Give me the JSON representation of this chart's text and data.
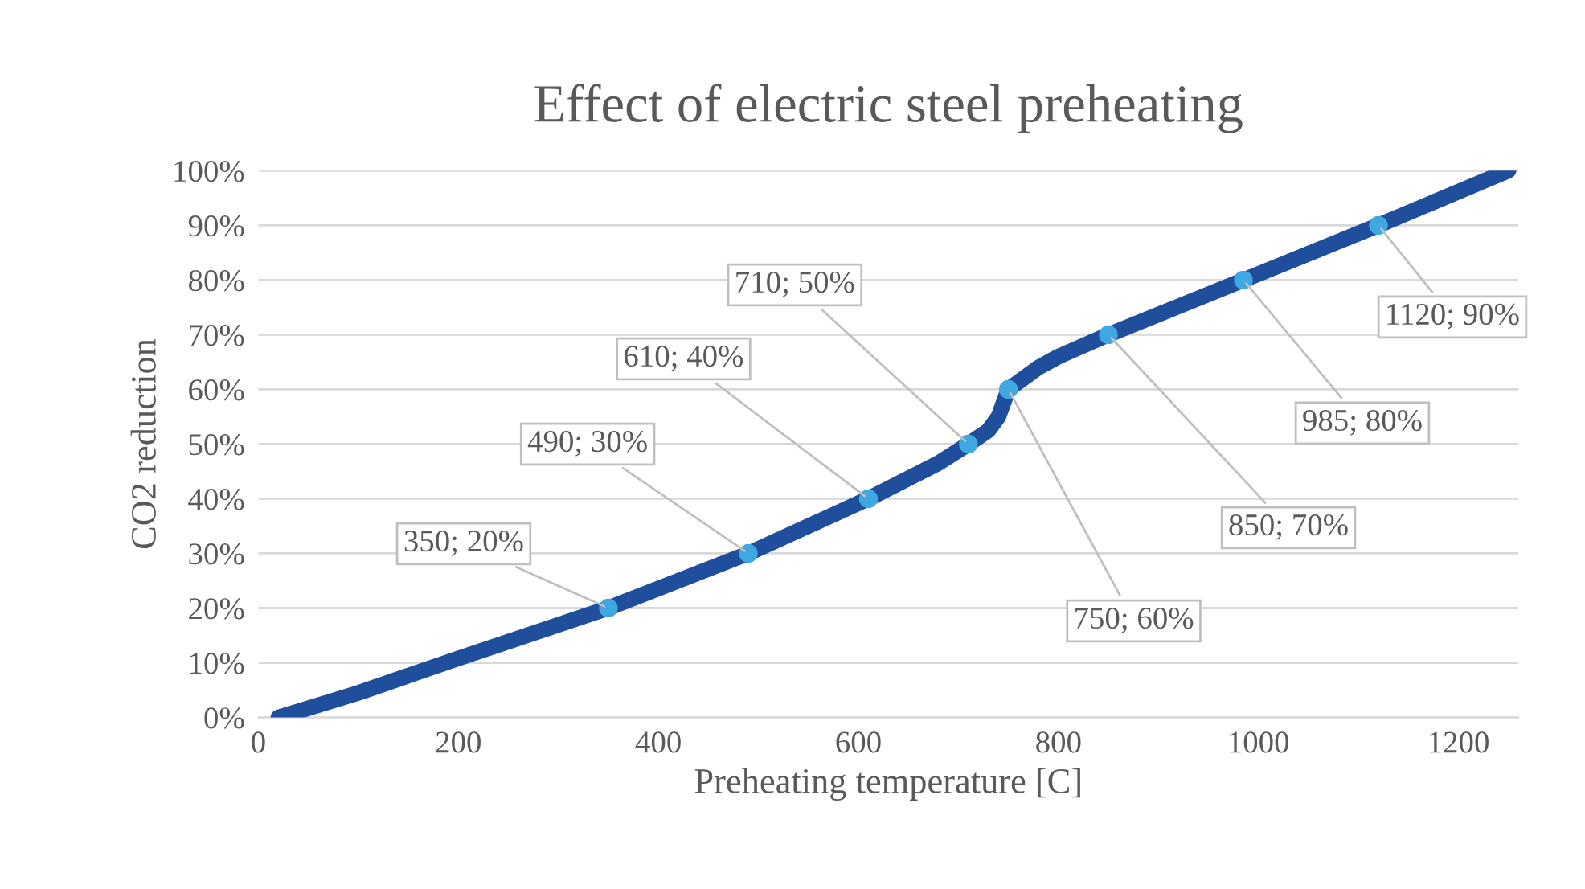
{
  "chart_data": {
    "type": "line",
    "title": "Effect of electric steel preheating",
    "xlabel": "Preheating temperature [C]",
    "ylabel": "CO2 reduction",
    "xlim": [
      0,
      1260
    ],
    "xticks": [
      0,
      200,
      400,
      600,
      800,
      1000,
      1200
    ],
    "ylim": [
      0,
      100
    ],
    "yticks": [
      {
        "value": 0,
        "label": "0%"
      },
      {
        "value": 10,
        "label": "10%"
      },
      {
        "value": 20,
        "label": "20%"
      },
      {
        "value": 30,
        "label": "30%"
      },
      {
        "value": 40,
        "label": "40%"
      },
      {
        "value": 50,
        "label": "50%"
      },
      {
        "value": 60,
        "label": "60%"
      },
      {
        "value": 70,
        "label": "70%"
      },
      {
        "value": 80,
        "label": "80%"
      },
      {
        "value": 90,
        "label": "90%"
      },
      {
        "value": 100,
        "label": "100%"
      }
    ],
    "grid": "y",
    "legend": false,
    "series": [
      {
        "color": "#1f4e9c",
        "marker": "none",
        "line_style": "solid",
        "x": [
          20,
          100,
          200,
          350,
          490,
          610,
          680,
          710,
          730,
          740,
          750,
          780,
          800,
          850,
          985,
          1120,
          1250
        ],
        "values": [
          0,
          4.5,
          10.8,
          20,
          30,
          40,
          46.5,
          50,
          52.5,
          55,
          60,
          64,
          66,
          70,
          80,
          90,
          100
        ]
      },
      {
        "type": "scatter",
        "color": "#3fa8e0",
        "marker": "circle",
        "x": [
          350,
          490,
          610,
          710,
          750,
          850,
          985,
          1120
        ],
        "values": [
          20,
          30,
          40,
          50,
          60,
          70,
          80,
          90
        ],
        "value_labels": [
          "350; 20%",
          "490; 30%",
          "610; 40%",
          "710; 50%",
          "750; 60%",
          "850; 70%",
          "985; 80%",
          "1120; 90%"
        ]
      }
    ]
  }
}
